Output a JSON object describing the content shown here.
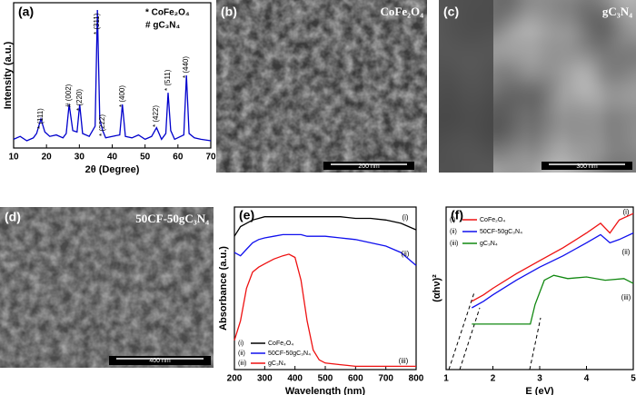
{
  "chart_data": [
    {
      "type": "line",
      "panel": "(a)",
      "xlabel": "2θ (Degree)",
      "ylabel": "Intensity (a.u.)",
      "x": [
        10,
        12,
        14,
        16,
        17,
        18.3,
        19.5,
        21,
        23,
        25,
        26,
        26.9,
        28,
        29.3,
        30.1,
        31,
        33,
        34.8,
        35.5,
        36.2,
        37.1,
        38,
        40,
        42.3,
        43.1,
        44,
        46,
        48,
        50,
        52,
        53.5,
        55,
        56.3,
        57,
        57.8,
        59,
        61.8,
        62.6,
        63.4,
        65,
        67,
        70
      ],
      "series": [
        {
          "color": "#0000cc",
          "values": [
            6,
            8,
            5,
            7,
            10,
            20,
            11,
            8,
            9,
            7,
            10,
            30,
            12,
            11,
            30,
            10,
            8,
            15,
            95,
            20,
            12,
            7,
            8,
            9,
            30,
            8,
            7,
            9,
            6,
            8,
            14,
            6,
            10,
            38,
            12,
            6,
            9,
            50,
            10,
            7,
            6,
            5
          ]
        }
      ],
      "xlim": [
        10,
        70
      ],
      "xticks": [
        10,
        20,
        30,
        40,
        50,
        60,
        70
      ],
      "ylim": [
        0,
        100
      ],
      "legend_texts": [
        "* CoFe₂O₄",
        "# gC₃N₄"
      ],
      "annotations": [
        "* (111)",
        "# (002)",
        "* (220)",
        "* (311)",
        "* (222)",
        "* (400)",
        "* (422)",
        "* (511)",
        "* (440)"
      ]
    },
    {
      "type": "line",
      "panel": "(e)",
      "xlabel": "Wavelength (nm)",
      "ylabel": "Absorbance (a.u.)",
      "x": [
        200,
        220,
        240,
        260,
        280,
        300,
        330,
        360,
        380,
        400,
        420,
        440,
        460,
        480,
        500,
        550,
        600,
        650,
        700,
        750,
        800
      ],
      "series": [
        {
          "name": "CoFe₂O₄",
          "color": "#000000",
          "values": [
            82,
            88,
            90,
            92,
            93,
            94,
            94,
            94,
            94,
            94,
            94,
            94,
            94,
            94,
            94,
            94,
            93,
            93,
            92,
            90,
            86
          ]
        },
        {
          "name": "50CF-50gC₃N₄",
          "color": "#1010ee",
          "values": [
            72,
            70,
            74,
            78,
            80,
            81,
            82,
            83,
            83,
            83,
            83,
            82,
            82,
            82,
            82,
            81,
            80,
            78,
            76,
            72,
            64
          ]
        },
        {
          "name": "gC₃N₄",
          "color": "#ee1111",
          "values": [
            18,
            30,
            50,
            60,
            63,
            65,
            68,
            70,
            71,
            69,
            55,
            30,
            12,
            6,
            4,
            3,
            2,
            2,
            2,
            2,
            2
          ]
        }
      ],
      "series_tags": [
        "(i)",
        "(ii)",
        "(iii)"
      ],
      "xlim": [
        200,
        800
      ],
      "xticks": [
        200,
        300,
        400,
        500,
        600,
        700,
        800
      ],
      "ylim": [
        0,
        100
      ]
    },
    {
      "type": "line",
      "panel": "(f)",
      "xlabel": "E (eV)",
      "ylabel": "(αhν)²",
      "series": [
        {
          "name": "CoFe₂O₄",
          "color": "#ee1111",
          "x": [
            1.55,
            1.8,
            2.0,
            2.5,
            3.0,
            3.5,
            4.0,
            4.3,
            4.5,
            4.7,
            5.0
          ],
          "values": [
            42,
            46,
            50,
            59,
            67,
            75,
            84,
            90,
            84,
            92,
            96
          ]
        },
        {
          "name": "50CF-50gC₃N₄",
          "color": "#1010ee",
          "x": [
            1.55,
            1.8,
            2.0,
            2.5,
            3.0,
            3.5,
            4.0,
            4.3,
            4.5,
            4.7,
            5.0
          ],
          "values": [
            38,
            42,
            46,
            55,
            63,
            70,
            78,
            83,
            78,
            80,
            84
          ]
        },
        {
          "name": "gC₃N₄",
          "color": "#118811",
          "x": [
            1.55,
            2.8,
            2.9,
            3.1,
            3.3,
            3.6,
            4.0,
            4.4,
            4.8,
            5.0
          ],
          "values": [
            28,
            28,
            40,
            55,
            58,
            56,
            57,
            55,
            56,
            53
          ]
        }
      ],
      "series_tags": [
        "(i)",
        "(ii)",
        "(iii)"
      ],
      "xlim": [
        1,
        5
      ],
      "xticks": [
        1,
        2,
        3,
        4,
        5
      ],
      "ylim": [
        0,
        100
      ]
    }
  ],
  "images": [
    {
      "panel": "(b)",
      "caption": "CoFe₂O₄",
      "scale": "200 nm"
    },
    {
      "panel": "(c)",
      "caption": "gC₃N₄",
      "scale": "300 nm"
    },
    {
      "panel": "(d)",
      "caption": "50CF-50gC₃N₄",
      "scale": "400 nm"
    }
  ]
}
